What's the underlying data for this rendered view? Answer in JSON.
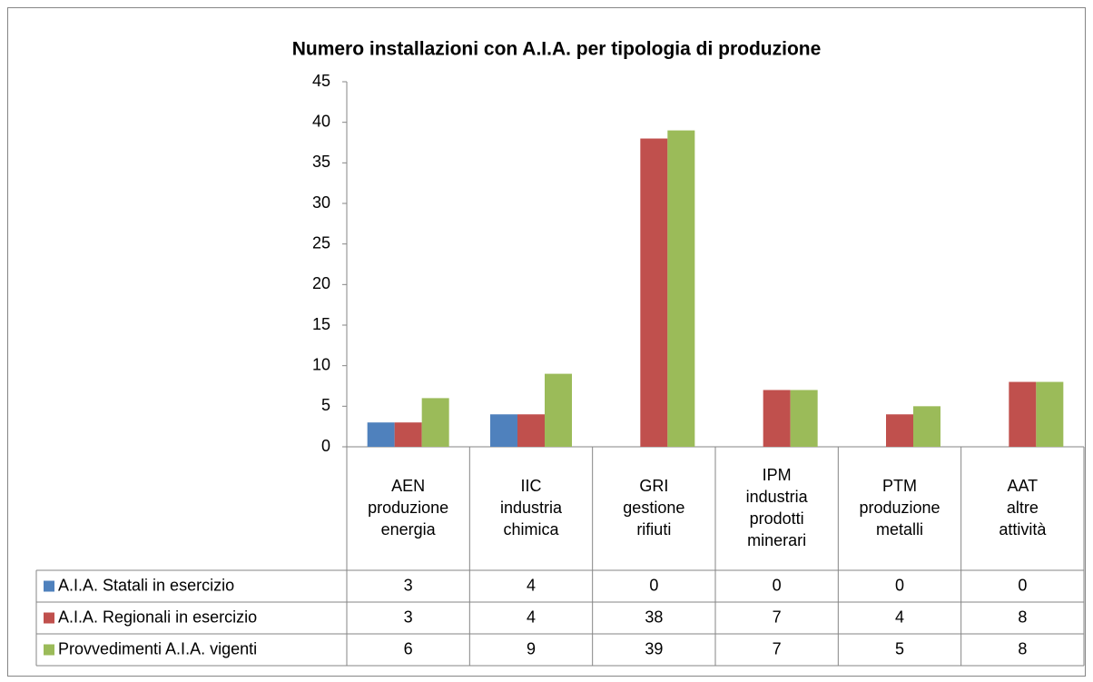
{
  "chart_data": {
    "type": "bar",
    "title": "Numero installazioni con A.I.A. per tipologia di produzione",
    "categories": [
      "AEN produzione energia",
      "IIC industria chimica",
      "GRI gestione rifiuti",
      "IPM industria prodotti minerari",
      "PTM produzione metalli",
      "AAT altre attività"
    ],
    "series": [
      {
        "name": "A.I.A. Statali in esercizio",
        "color": "#4f81bd",
        "values": [
          3,
          4,
          0,
          0,
          0,
          0
        ]
      },
      {
        "name": "A.I.A. Regionali in esercizio",
        "color": "#c0504d",
        "values": [
          3,
          4,
          38,
          7,
          4,
          8
        ]
      },
      {
        "name": "Provvedimenti A.I.A. vigenti",
        "color": "#9bbb59",
        "values": [
          6,
          9,
          39,
          7,
          5,
          8
        ]
      }
    ],
    "ylim": [
      0,
      45
    ],
    "yticks": [
      0,
      5,
      10,
      15,
      20,
      25,
      30,
      35,
      40,
      45
    ],
    "grid": false,
    "data_table": true
  }
}
